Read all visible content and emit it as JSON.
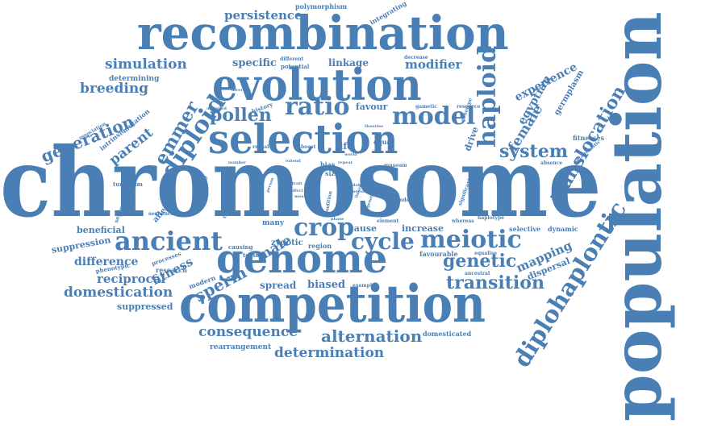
{
  "theme": {
    "word_color": "#4a7fb5",
    "background": "#ffffff"
  },
  "words": [
    {
      "text": "chromosome",
      "weight": 100
    },
    {
      "text": "population",
      "weight": 92
    },
    {
      "text": "recombination",
      "weight": 62
    },
    {
      "text": "competition",
      "weight": 60
    },
    {
      "text": "evolution",
      "weight": 58
    },
    {
      "text": "selection",
      "weight": 56
    },
    {
      "text": "genome",
      "weight": 54
    },
    {
      "text": "diplohaplontic",
      "weight": 40
    },
    {
      "text": "ancient",
      "weight": 36
    },
    {
      "text": "diploid",
      "weight": 34
    },
    {
      "text": "haploid",
      "weight": 32
    },
    {
      "text": "ratio",
      "weight": 32
    },
    {
      "text": "meiotic",
      "weight": 30
    },
    {
      "text": "crop",
      "weight": 30
    },
    {
      "text": "model",
      "weight": 28
    },
    {
      "text": "cycle",
      "weight": 28
    },
    {
      "text": "translocation",
      "weight": 26
    },
    {
      "text": "transition",
      "weight": 24
    },
    {
      "text": "pollen",
      "weight": 22
    },
    {
      "text": "emmer",
      "weight": 22
    },
    {
      "text": "genetic",
      "weight": 22
    },
    {
      "text": "system",
      "weight": 22
    },
    {
      "text": "sperm",
      "weight": 20
    },
    {
      "text": "generation",
      "weight": 20
    },
    {
      "text": "alternation",
      "weight": 20
    },
    {
      "text": "determination",
      "weight": 18
    },
    {
      "text": "consequence",
      "weight": 18
    },
    {
      "text": "domestication",
      "weight": 17
    },
    {
      "text": "breeding",
      "weight": 17
    },
    {
      "text": "simulation",
      "weight": 17
    },
    {
      "text": "female",
      "weight": 17
    },
    {
      "text": "parent",
      "weight": 17
    },
    {
      "text": "male",
      "weight": 17
    },
    {
      "text": "fitness",
      "weight": 16
    },
    {
      "text": "mapping",
      "weight": 16
    },
    {
      "text": "persistence",
      "weight": 15
    },
    {
      "text": "modifier",
      "weight": 15
    },
    {
      "text": "reciprocal",
      "weight": 15
    },
    {
      "text": "difference",
      "weight": 14
    },
    {
      "text": "experience",
      "weight": 14
    },
    {
      "text": "egyptian",
      "weight": 14
    },
    {
      "text": "specific",
      "weight": 13
    },
    {
      "text": "linkage",
      "weight": 12
    },
    {
      "text": "biased",
      "weight": 13
    },
    {
      "text": "spread",
      "weight": 12
    },
    {
      "text": "suppressed",
      "weight": 11
    },
    {
      "text": "suppression",
      "weight": 11
    },
    {
      "text": "beneficial",
      "weight": 11
    },
    {
      "text": "dispersal",
      "weight": 11
    },
    {
      "text": "favour",
      "weight": 11
    },
    {
      "text": "drive",
      "weight": 11
    },
    {
      "text": "life",
      "weight": 11
    },
    {
      "text": "cause",
      "weight": 11
    },
    {
      "text": "increase",
      "weight": 11
    },
    {
      "text": "zygotic",
      "weight": 10
    },
    {
      "text": "allele",
      "weight": 10
    },
    {
      "text": "germplasm",
      "weight": 10
    },
    {
      "text": "determining",
      "weight": 9
    },
    {
      "text": "rearrangement",
      "weight": 9
    },
    {
      "text": "domesticated",
      "weight": 8
    },
    {
      "text": "integrating",
      "weight": 8
    },
    {
      "text": "mutation",
      "weight": 8
    },
    {
      "text": "intrinsic",
      "weight": 8
    },
    {
      "text": "fitnesses",
      "weight": 8
    },
    {
      "text": "polymorphism",
      "weight": 8
    },
    {
      "text": "quantitative",
      "weight": 7
    },
    {
      "text": "history",
      "weight": 7
    },
    {
      "text": "many",
      "weight": 9
    },
    {
      "text": "region",
      "weight": 8
    },
    {
      "text": "research",
      "weight": 8
    },
    {
      "text": "modern",
      "weight": 8
    },
    {
      "text": "selective",
      "weight": 8
    },
    {
      "text": "dynamic",
      "weight": 8
    },
    {
      "text": "favourable",
      "weight": 8
    },
    {
      "text": "turgidum",
      "weight": 7
    },
    {
      "text": "segregation",
      "weight": 7
    },
    {
      "text": "processes",
      "weight": 7
    },
    {
      "text": "phenotypic",
      "weight": 7
    },
    {
      "text": "association",
      "weight": 6
    },
    {
      "text": "antagonistic",
      "weight": 6
    },
    {
      "text": "boost",
      "weight": 6
    },
    {
      "text": "reveal",
      "weight": 6
    },
    {
      "text": "bias",
      "weight": 8
    },
    {
      "text": "equal",
      "weight": 8
    },
    {
      "text": "size",
      "weight": 8
    },
    {
      "text": "significant",
      "weight": 6
    },
    {
      "text": "museum",
      "weight": 6
    },
    {
      "text": "potential",
      "weight": 7
    },
    {
      "text": "different",
      "weight": 6
    },
    {
      "text": "decrease",
      "weight": 6
    },
    {
      "text": "gametic",
      "weight": 6
    },
    {
      "text": "resource",
      "weight": 6
    },
    {
      "text": "genotype",
      "weight": 6
    },
    {
      "text": "tetraploid",
      "weight": 6
    },
    {
      "text": "toolbox",
      "weight": 7
    },
    {
      "text": "causing",
      "weight": 7
    },
    {
      "text": "haplotype",
      "weight": 6
    },
    {
      "text": "whereas",
      "weight": 6
    },
    {
      "text": "ancestral",
      "weight": 6
    },
    {
      "text": "equalise",
      "weight": 6
    },
    {
      "text": "example",
      "weight": 6
    },
    {
      "text": "sequence",
      "weight": 6
    },
    {
      "text": "element",
      "weight": 6
    },
    {
      "text": "founder",
      "weight": 6
    },
    {
      "text": "absence",
      "weight": 6
    },
    {
      "text": "unlinked",
      "weight": 5
    },
    {
      "text": "diversity",
      "weight": 5
    },
    {
      "text": "theories",
      "weight": 5
    },
    {
      "text": "number",
      "weight": 5
    },
    {
      "text": "extend",
      "weight": 5
    },
    {
      "text": "condition",
      "weight": 6
    },
    {
      "text": "trait",
      "weight": 5
    },
    {
      "text": "display",
      "weight": 5
    },
    {
      "text": "common",
      "weight": 5
    },
    {
      "text": "person",
      "weight": 5
    },
    {
      "text": "result",
      "weight": 5
    },
    {
      "text": "occur",
      "weight": 5
    },
    {
      "text": "linked",
      "weight": 5
    },
    {
      "text": "effect",
      "weight": 5
    },
    {
      "text": "most",
      "weight": 5
    },
    {
      "text": "data",
      "weight": 5
    },
    {
      "text": "locus",
      "weight": 5
    },
    {
      "text": "stage",
      "weight": 5
    },
    {
      "text": "phase",
      "weight": 5
    },
    {
      "text": "repeat",
      "weight": 5
    },
    {
      "text": "world",
      "weight": 5
    },
    {
      "text": "genetics",
      "weight": 5
    },
    {
      "text": "trend",
      "weight": 5
    }
  ]
}
